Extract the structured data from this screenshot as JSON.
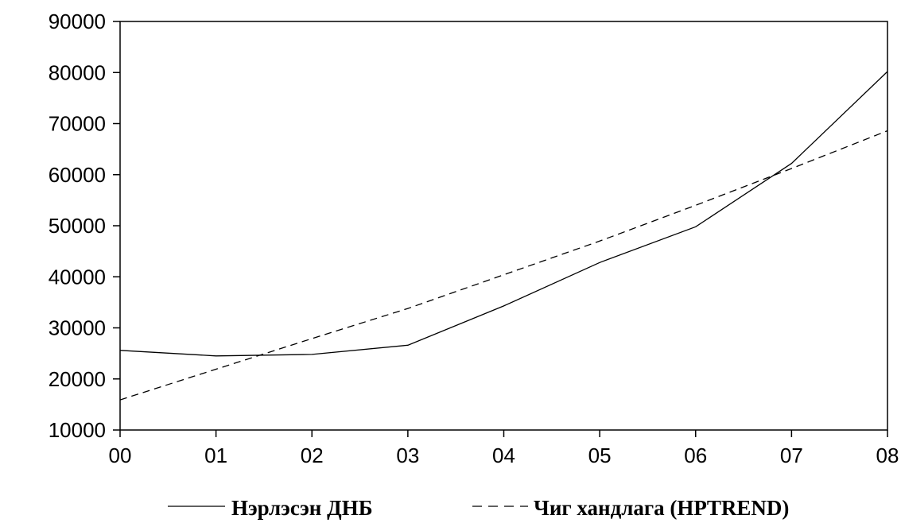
{
  "chart_data": {
    "type": "line",
    "categories": [
      "00",
      "01",
      "02",
      "03",
      "04",
      "05",
      "06",
      "07",
      "08"
    ],
    "series": [
      {
        "name": "Нэрлэсэн ДНБ",
        "style": "solid",
        "color": "#000000",
        "values": [
          25600,
          24500,
          24800,
          26600,
          34300,
          42800,
          49800,
          62200,
          80200
        ]
      },
      {
        "name": "Чиг хандлага (HPTREND)",
        "style": "dashed",
        "color": "#000000",
        "values": [
          15900,
          21900,
          27900,
          33800,
          40400,
          47000,
          54000,
          61200,
          68600
        ]
      }
    ],
    "ylim": [
      10000,
      90000
    ],
    "yticks": [
      "10000",
      "20000",
      "30000",
      "40000",
      "50000",
      "60000",
      "70000",
      "80000",
      "90000"
    ],
    "grid": false,
    "legend_position": "bottom"
  }
}
